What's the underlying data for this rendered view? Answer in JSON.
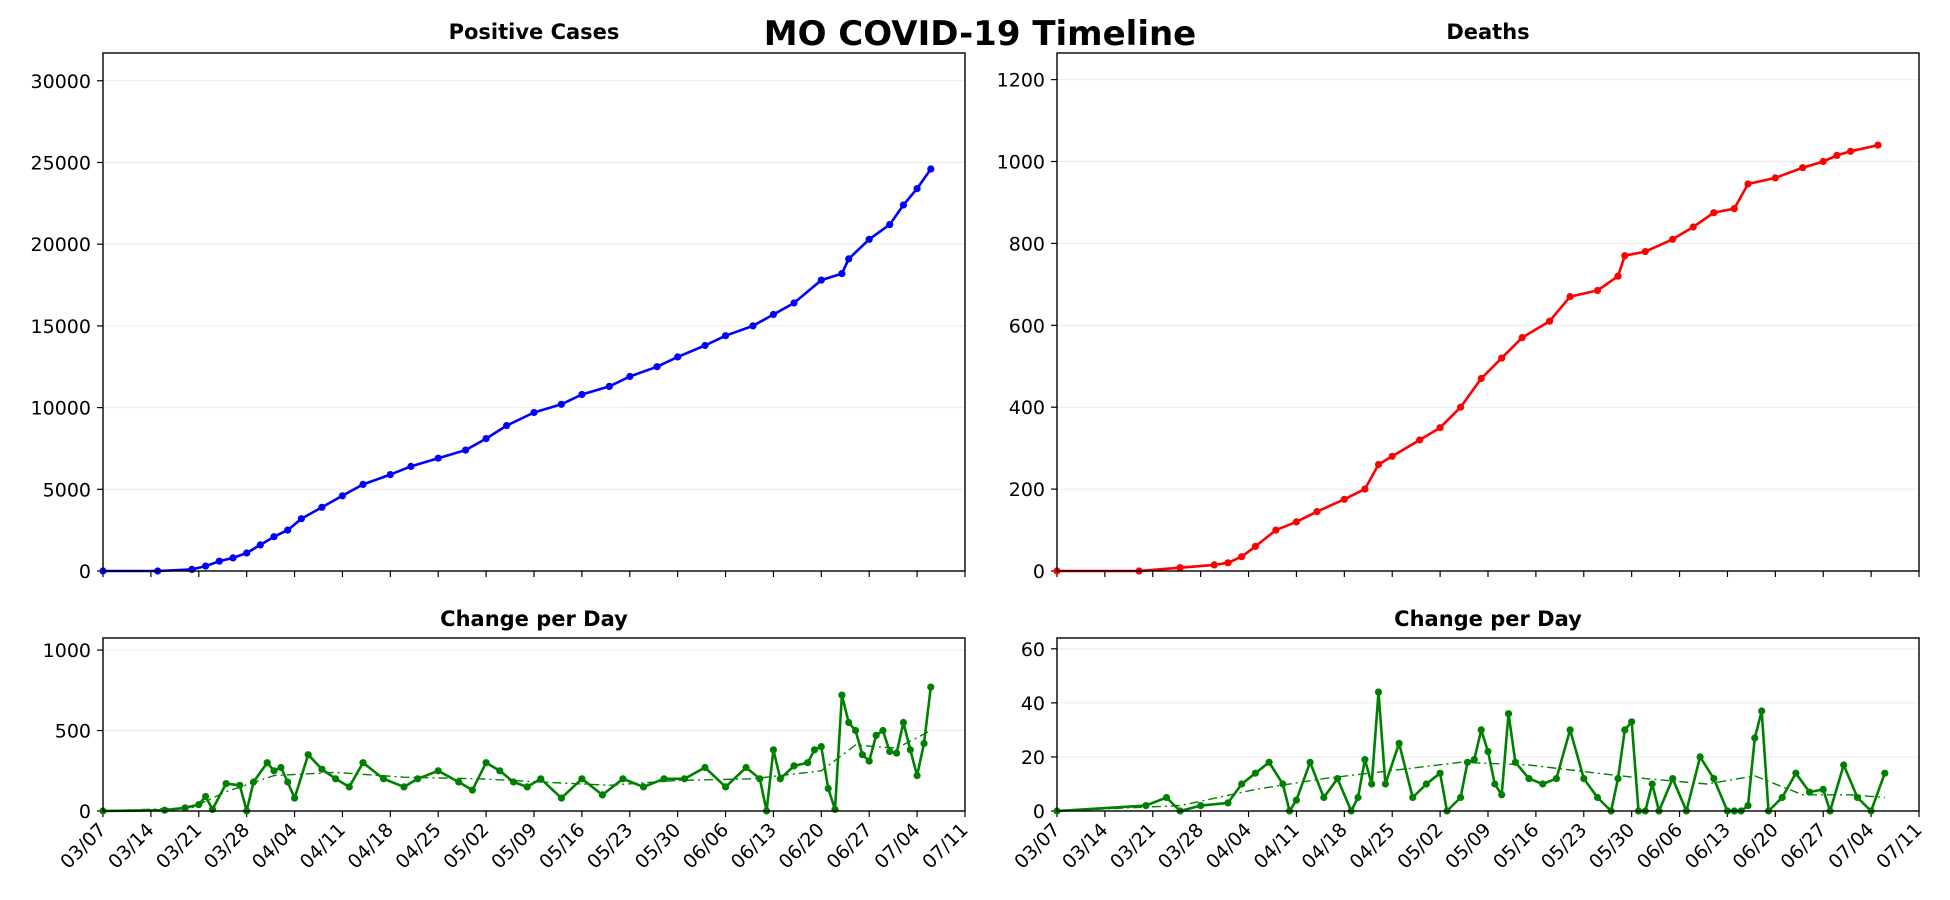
{
  "figure": {
    "title": "MO COVID-19 Timeline"
  },
  "x_axis": {
    "tick_labels": [
      "03/07",
      "03/14",
      "03/21",
      "03/28",
      "04/04",
      "04/11",
      "04/18",
      "04/25",
      "05/02",
      "05/09",
      "05/16",
      "05/23",
      "05/30",
      "06/06",
      "06/13",
      "06/20",
      "06/27",
      "07/04",
      "07/11"
    ],
    "range": [
      "03/07",
      "07/11"
    ]
  },
  "colors": {
    "cases": "#0000ff",
    "deaths": "#ff0000",
    "change": "#008000"
  },
  "chart_data": [
    {
      "id": "cases",
      "type": "line",
      "title": "Positive Cases",
      "xlabel": "",
      "ylabel": "",
      "ylim": [
        0,
        31700
      ],
      "yticks": [
        0,
        5000,
        10000,
        15000,
        20000,
        25000,
        30000
      ],
      "grid": true,
      "x_format": "MM/DD",
      "series": [
        {
          "x": [
            "03/07",
            "03/15",
            "03/20",
            "03/22",
            "03/24",
            "03/26",
            "03/28",
            "03/30",
            "04/01",
            "04/03",
            "04/05",
            "04/08",
            "04/11",
            "04/14",
            "04/18",
            "04/21",
            "04/25",
            "04/29",
            "05/02",
            "05/05",
            "05/09",
            "05/13",
            "05/16",
            "05/20",
            "05/23",
            "05/27",
            "05/30",
            "06/03",
            "06/06",
            "06/10",
            "06/13",
            "06/16",
            "06/20",
            "06/23",
            "06/24",
            "06/27",
            "06/30",
            "07/02",
            "07/04",
            "07/06"
          ],
          "values": [
            0,
            0,
            100,
            300,
            600,
            800,
            1100,
            1600,
            2100,
            2500,
            3200,
            3900,
            4600,
            5300,
            5900,
            6400,
            6900,
            7400,
            8100,
            8900,
            9700,
            10200,
            10800,
            11300,
            11900,
            12500,
            13100,
            13800,
            14400,
            15000,
            15700,
            16400,
            17800,
            18200,
            19100,
            20300,
            21200,
            22400,
            23400,
            24600
          ]
        }
      ]
    },
    {
      "id": "deaths",
      "type": "line",
      "title": "Deaths",
      "xlabel": "",
      "ylabel": "",
      "ylim": [
        0,
        1265
      ],
      "yticks": [
        0,
        200,
        400,
        600,
        800,
        1000,
        1200
      ],
      "grid": true,
      "x_format": "MM/DD",
      "series": [
        {
          "x": [
            "03/07",
            "03/19",
            "03/25",
            "03/30",
            "04/01",
            "04/03",
            "04/05",
            "04/08",
            "04/11",
            "04/14",
            "04/18",
            "04/21",
            "04/23",
            "04/25",
            "04/29",
            "05/02",
            "05/05",
            "05/08",
            "05/11",
            "05/14",
            "05/18",
            "05/21",
            "05/25",
            "05/28",
            "05/29",
            "06/01",
            "06/05",
            "06/08",
            "06/11",
            "06/14",
            "06/16",
            "06/20",
            "06/24",
            "06/27",
            "06/29",
            "07/01",
            "07/05"
          ],
          "values": [
            0,
            0,
            8,
            15,
            20,
            35,
            60,
            100,
            120,
            145,
            175,
            200,
            260,
            280,
            320,
            350,
            400,
            470,
            520,
            570,
            610,
            670,
            685,
            720,
            770,
            780,
            810,
            840,
            875,
            885,
            945,
            960,
            985,
            1000,
            1015,
            1025,
            1040
          ]
        }
      ]
    },
    {
      "id": "cases_change",
      "type": "line",
      "title": "Change per Day",
      "xlabel": "",
      "ylabel": "",
      "ylim": [
        0,
        1075
      ],
      "yticks": [
        0,
        500,
        1000
      ],
      "grid": true,
      "x_format": "MM/DD",
      "series": [
        {
          "style": "solid-markers",
          "x": [
            "03/07",
            "03/16",
            "03/19",
            "03/21",
            "03/22",
            "03/23",
            "03/25",
            "03/27",
            "03/28",
            "03/29",
            "03/31",
            "04/01",
            "04/02",
            "04/03",
            "04/04",
            "04/06",
            "04/08",
            "04/10",
            "04/12",
            "04/14",
            "04/17",
            "04/20",
            "04/22",
            "04/25",
            "04/28",
            "04/30",
            "05/02",
            "05/04",
            "05/06",
            "05/08",
            "05/10",
            "05/13",
            "05/16",
            "05/19",
            "05/22",
            "05/25",
            "05/28",
            "05/31",
            "06/03",
            "06/06",
            "06/09",
            "06/11",
            "06/12",
            "06/13",
            "06/14",
            "06/16",
            "06/18",
            "06/19",
            "06/20",
            "06/21",
            "06/22",
            "06/23",
            "06/24",
            "06/25",
            "06/26",
            "06/27",
            "06/28",
            "06/29",
            "06/30",
            "07/01",
            "07/02",
            "07/03",
            "07/04",
            "07/05",
            "07/06"
          ],
          "values": [
            0,
            5,
            20,
            40,
            90,
            10,
            170,
            160,
            0,
            180,
            300,
            250,
            270,
            180,
            80,
            350,
            260,
            200,
            150,
            300,
            200,
            150,
            200,
            250,
            180,
            130,
            300,
            250,
            180,
            150,
            200,
            80,
            200,
            100,
            200,
            150,
            200,
            200,
            270,
            150,
            270,
            200,
            0,
            380,
            200,
            280,
            300,
            380,
            400,
            140,
            10,
            720,
            550,
            500,
            350,
            310,
            470,
            500,
            370,
            360,
            550,
            380,
            220,
            420,
            770
          ]
        },
        {
          "style": "dash-dot",
          "x": [
            "03/07",
            "03/20",
            "03/25",
            "04/01",
            "04/10",
            "04/20",
            "05/01",
            "05/10",
            "05/20",
            "05/30",
            "06/10",
            "06/20",
            "06/25",
            "07/01",
            "07/06"
          ],
          "values": [
            0,
            20,
            120,
            220,
            240,
            210,
            200,
            180,
            160,
            190,
            200,
            250,
            410,
            390,
            500
          ]
        }
      ]
    },
    {
      "id": "deaths_change",
      "type": "line",
      "title": "Change per Day",
      "xlabel": "",
      "ylabel": "",
      "ylim": [
        0,
        64
      ],
      "yticks": [
        0,
        20,
        40,
        60
      ],
      "grid": true,
      "x_format": "MM/DD",
      "series": [
        {
          "style": "solid-markers",
          "x": [
            "03/07",
            "03/20",
            "03/23",
            "03/25",
            "03/28",
            "04/01",
            "04/03",
            "04/05",
            "04/07",
            "04/09",
            "04/10",
            "04/11",
            "04/13",
            "04/15",
            "04/17",
            "04/19",
            "04/20",
            "04/21",
            "04/22",
            "04/23",
            "04/24",
            "04/26",
            "04/28",
            "04/30",
            "05/02",
            "05/03",
            "05/05",
            "05/06",
            "05/07",
            "05/08",
            "05/09",
            "05/10",
            "05/11",
            "05/12",
            "05/13",
            "05/15",
            "05/17",
            "05/19",
            "05/21",
            "05/23",
            "05/25",
            "05/27",
            "05/28",
            "05/29",
            "05/30",
            "05/31",
            "06/01",
            "06/02",
            "06/03",
            "06/05",
            "06/07",
            "06/09",
            "06/11",
            "06/13",
            "06/14",
            "06/15",
            "06/16",
            "06/17",
            "06/18",
            "06/19",
            "06/21",
            "06/23",
            "06/25",
            "06/27",
            "06/28",
            "06/30",
            "07/02",
            "07/04",
            "07/06"
          ],
          "values": [
            0,
            2,
            5,
            0,
            2,
            3,
            10,
            14,
            18,
            10,
            0,
            4,
            18,
            5,
            12,
            0,
            5,
            19,
            10,
            44,
            10,
            25,
            5,
            10,
            14,
            0,
            5,
            18,
            19,
            30,
            22,
            10,
            6,
            36,
            18,
            12,
            10,
            12,
            30,
            12,
            5,
            0,
            12,
            30,
            33,
            0,
            0,
            10,
            0,
            12,
            0,
            20,
            12,
            0,
            0,
            0,
            2,
            27,
            37,
            0,
            5,
            14,
            7,
            8,
            0,
            17,
            5,
            0,
            14
          ]
        },
        {
          "style": "dash-dot",
          "x": [
            "03/07",
            "03/25",
            "04/05",
            "04/15",
            "04/25",
            "05/05",
            "05/15",
            "05/25",
            "06/01",
            "06/10",
            "06/17",
            "06/24",
            "07/01",
            "07/06"
          ],
          "values": [
            0,
            2,
            8,
            12,
            15,
            18,
            17,
            14,
            12,
            10,
            13,
            6,
            6,
            5
          ]
        }
      ]
    }
  ]
}
